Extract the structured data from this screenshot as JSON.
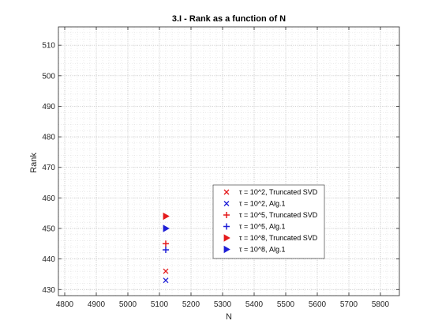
{
  "chart_data": {
    "type": "scatter",
    "title": "3.I - Rank as a function of N",
    "xlabel": "N",
    "ylabel": "Rank",
    "xlim": [
      4780,
      5860
    ],
    "ylim": [
      428,
      516
    ],
    "xticks": [
      4800,
      4900,
      5000,
      5100,
      5200,
      5300,
      5400,
      5500,
      5600,
      5700,
      5800
    ],
    "yticks": [
      430,
      440,
      450,
      460,
      470,
      480,
      490,
      500,
      510
    ],
    "grid": true,
    "minor_grid": true,
    "legend_position": "inside-lower-middle",
    "series": [
      {
        "name": "τ = 10^2, Truncated SVD",
        "marker": "x",
        "color": "#e41a1c",
        "x": [
          5120
        ],
        "y": [
          436
        ]
      },
      {
        "name": "τ = 10^2, Alg.1",
        "marker": "x",
        "color": "#1f1fd6",
        "x": [
          5120
        ],
        "y": [
          433
        ]
      },
      {
        "name": "τ = 10^5, Truncated SVD",
        "marker": "plus",
        "color": "#e41a1c",
        "x": [
          5120
        ],
        "y": [
          445
        ]
      },
      {
        "name": "τ = 10^5, Alg.1",
        "marker": "plus",
        "color": "#1f1fd6",
        "x": [
          5120
        ],
        "y": [
          443
        ]
      },
      {
        "name": "τ = 10^8, Truncated SVD",
        "marker": "triangle-right",
        "color": "#e41a1c",
        "x": [
          5120
        ],
        "y": [
          454
        ]
      },
      {
        "name": "τ = 10^8, Alg.1",
        "marker": "triangle-right",
        "color": "#1f1fd6",
        "x": [
          5120
        ],
        "y": [
          450
        ]
      }
    ]
  }
}
